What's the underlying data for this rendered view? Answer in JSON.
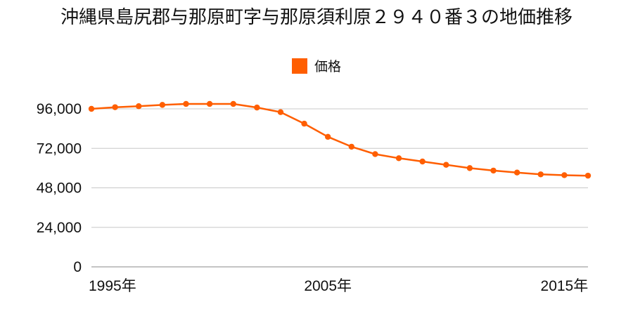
{
  "chart_data": {
    "type": "line",
    "title": "沖縄県島尻郡与那原町字与那原須利原２９４０番３の地価推移",
    "legend": {
      "label": "価格",
      "color": "#ff5e00",
      "placement": "top-center"
    },
    "xlim": [
      1995,
      2016
    ],
    "ylim": [
      0,
      96000
    ],
    "yticks": [
      {
        "value": 0,
        "label": "0"
      },
      {
        "value": 24000,
        "label": "24,000"
      },
      {
        "value": 48000,
        "label": "48,000"
      },
      {
        "value": 72000,
        "label": "72,000"
      },
      {
        "value": 96000,
        "label": "96,000"
      }
    ],
    "xticks": [
      {
        "value": 1995,
        "label": "1995年"
      },
      {
        "value": 2005,
        "label": "2005年"
      },
      {
        "value": 2015,
        "label": "2015年"
      }
    ],
    "grid": "horizontal",
    "series": [
      {
        "name": "価格",
        "color": "#ff5e00",
        "x": [
          1995,
          1996,
          1997,
          1998,
          1999,
          2000,
          2001,
          2002,
          2003,
          2004,
          2005,
          2006,
          2007,
          2008,
          2009,
          2010,
          2011,
          2012,
          2013,
          2014,
          2015,
          2016
        ],
        "values": [
          96000,
          97000,
          97600,
          98400,
          99000,
          99000,
          99000,
          96800,
          94000,
          87000,
          79000,
          73000,
          68500,
          66000,
          64000,
          62000,
          60000,
          58500,
          57300,
          56200,
          55700,
          55400
        ]
      }
    ]
  }
}
